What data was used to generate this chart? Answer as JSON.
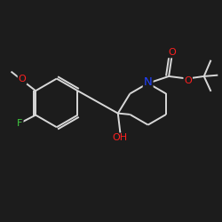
{
  "background_color": "#1c1c1c",
  "bond_color": "#d8d8d8",
  "atom_colors": {
    "O": "#ff2020",
    "N": "#2040ff",
    "F": "#40cc40",
    "C": "#d8d8d8"
  },
  "font_size": 8.0,
  "linewidth": 1.4
}
